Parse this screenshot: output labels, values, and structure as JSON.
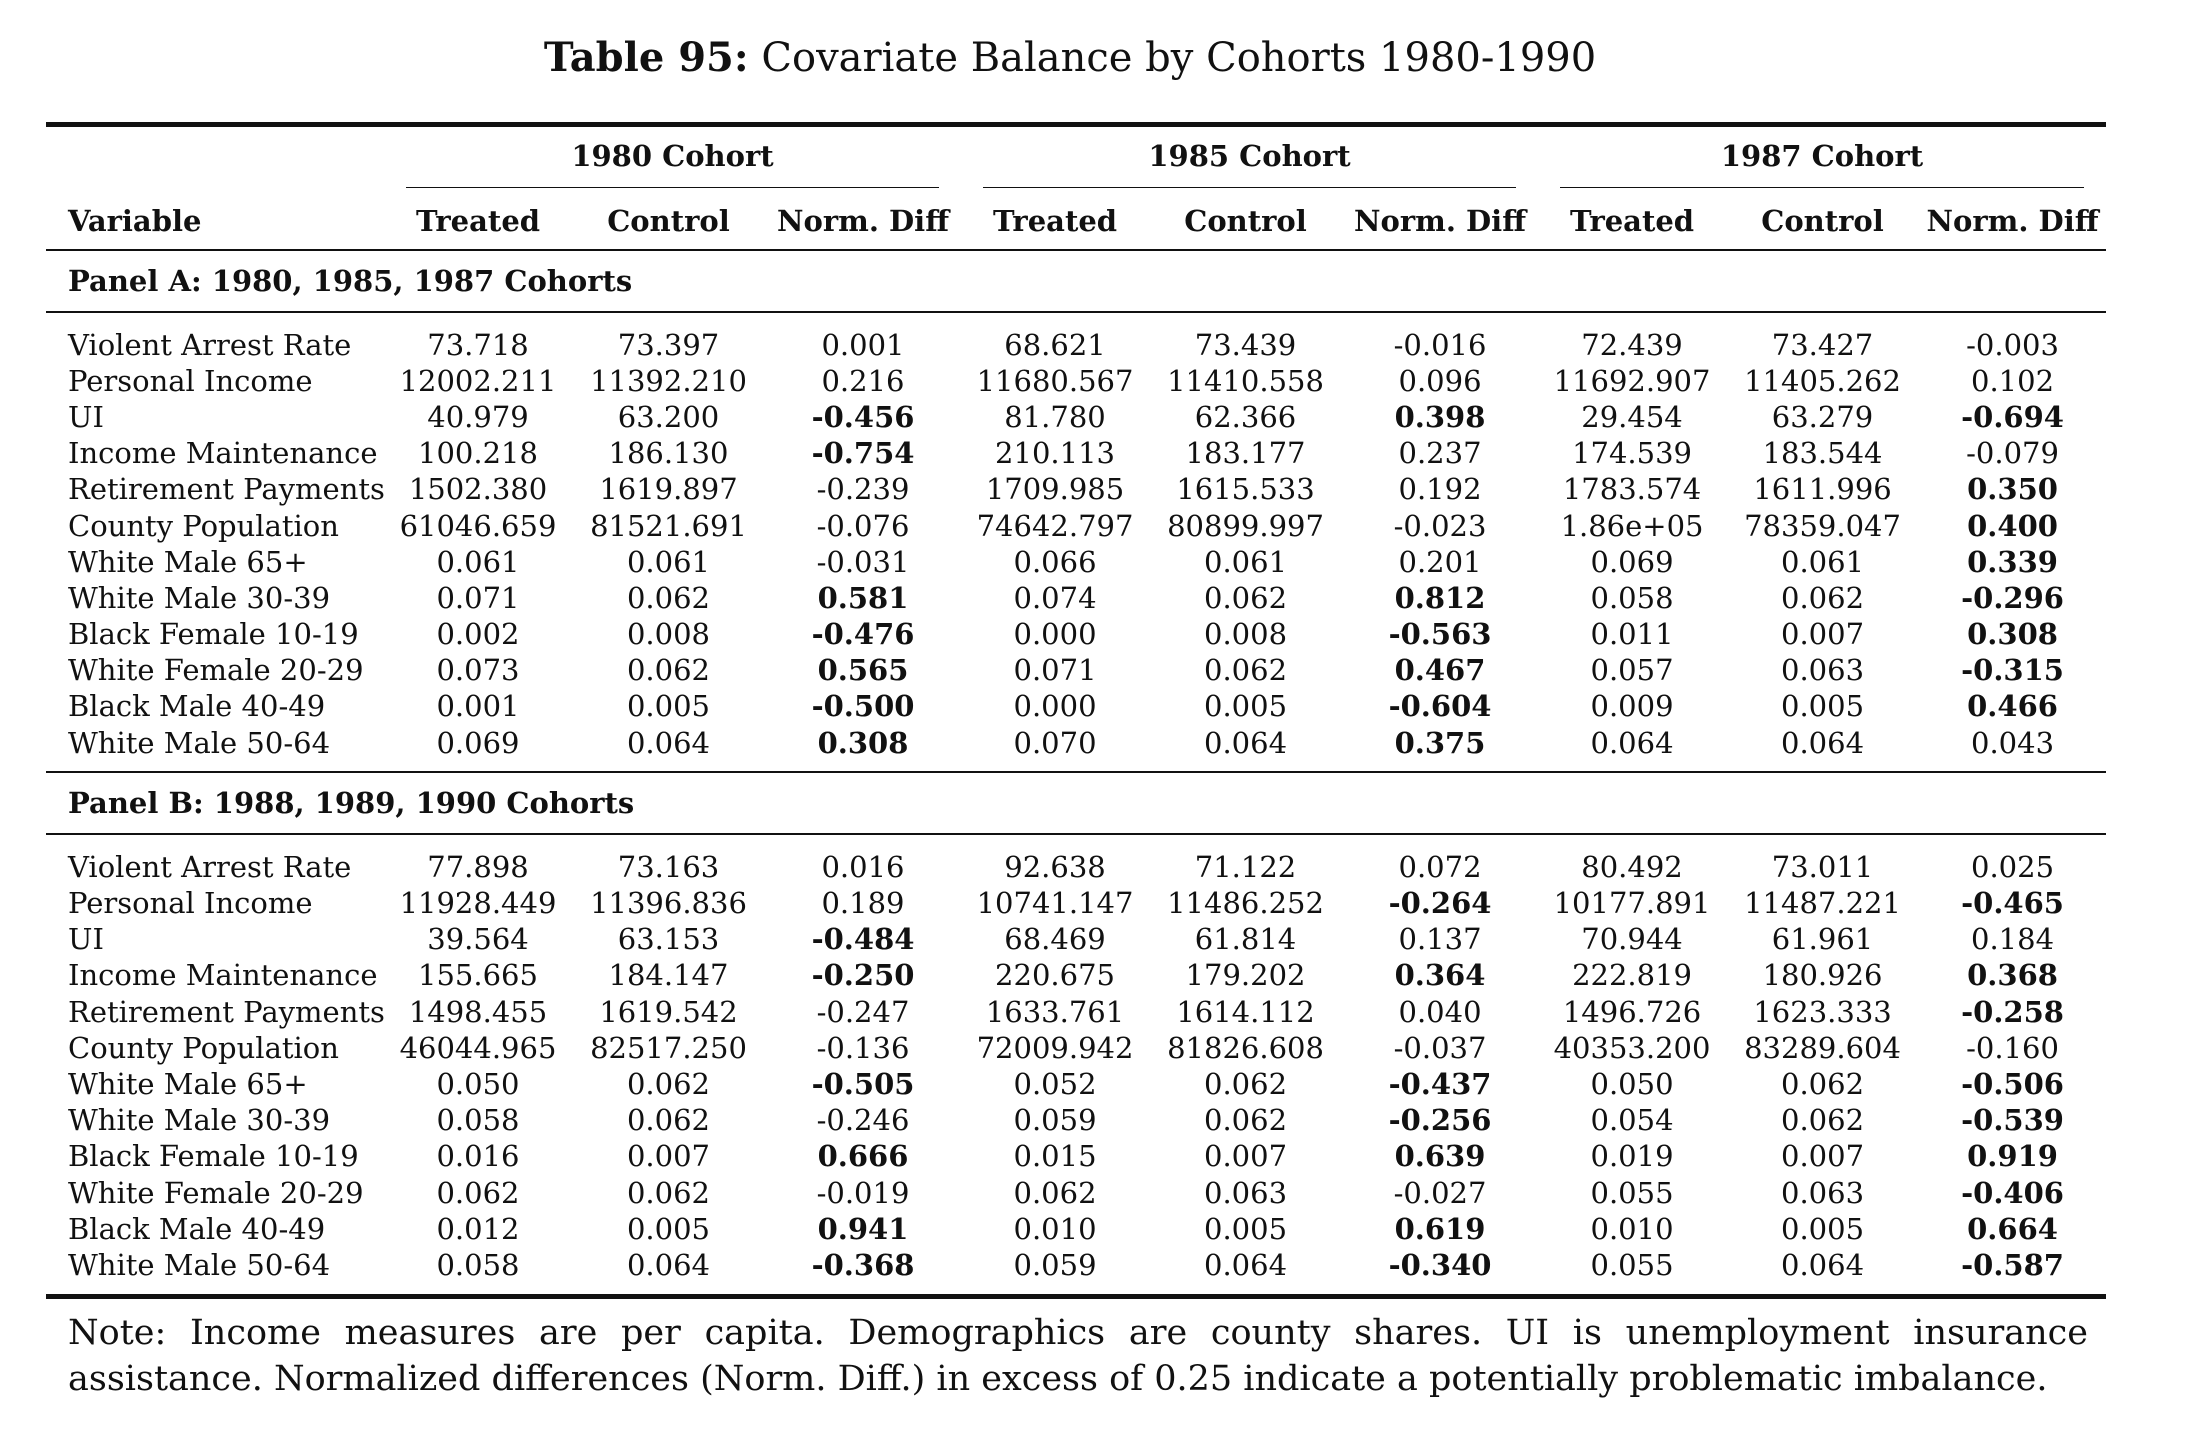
{
  "title_label": "Table 95:",
  "title_text": "Covariate Balance by Cohorts 1980-1990",
  "cohorts": [
    "1980 Cohort",
    "1985 Cohort",
    "1987 Cohort"
  ],
  "columns": [
    "Variable",
    "Treated",
    "Control",
    "Norm. Diff",
    "Treated",
    "Control",
    "Norm. Diff",
    "Treated",
    "Control",
    "Norm. Diff"
  ],
  "panels": [
    {
      "label": "Panel A: 1980, 1985, 1987 Cohorts",
      "rows": [
        {
          "var": "Violent Arrest Rate",
          "cells": [
            "73.718",
            "73.397",
            "0.001",
            "68.621",
            "73.439",
            "-0.016",
            "72.439",
            "73.427",
            "-0.003"
          ],
          "bold": []
        },
        {
          "var": "Personal Income",
          "cells": [
            "12002.211",
            "11392.210",
            "0.216",
            "11680.567",
            "11410.558",
            "0.096",
            "11692.907",
            "11405.262",
            "0.102"
          ],
          "bold": []
        },
        {
          "var": "UI",
          "cells": [
            "40.979",
            "63.200",
            "-0.456",
            "81.780",
            "62.366",
            "0.398",
            "29.454",
            "63.279",
            "-0.694"
          ],
          "bold": [
            2,
            5,
            8
          ]
        },
        {
          "var": "Income Maintenance",
          "cells": [
            "100.218",
            "186.130",
            "-0.754",
            "210.113",
            "183.177",
            "0.237",
            "174.539",
            "183.544",
            "-0.079"
          ],
          "bold": [
            2
          ]
        },
        {
          "var": "Retirement Payments",
          "cells": [
            "1502.380",
            "1619.897",
            "-0.239",
            "1709.985",
            "1615.533",
            "0.192",
            "1783.574",
            "1611.996",
            "0.350"
          ],
          "bold": [
            8
          ]
        },
        {
          "var": "County Population",
          "cells": [
            "61046.659",
            "81521.691",
            "-0.076",
            "74642.797",
            "80899.997",
            "-0.023",
            "1.86e+05",
            "78359.047",
            "0.400"
          ],
          "bold": [
            8
          ]
        },
        {
          "var": "White Male 65+",
          "cells": [
            "0.061",
            "0.061",
            "-0.031",
            "0.066",
            "0.061",
            "0.201",
            "0.069",
            "0.061",
            "0.339"
          ],
          "bold": [
            8
          ]
        },
        {
          "var": "White Male 30-39",
          "cells": [
            "0.071",
            "0.062",
            "0.581",
            "0.074",
            "0.062",
            "0.812",
            "0.058",
            "0.062",
            "-0.296"
          ],
          "bold": [
            2,
            5,
            8
          ]
        },
        {
          "var": "Black Female 10-19",
          "cells": [
            "0.002",
            "0.008",
            "-0.476",
            "0.000",
            "0.008",
            "-0.563",
            "0.011",
            "0.007",
            "0.308"
          ],
          "bold": [
            2,
            5,
            8
          ]
        },
        {
          "var": "White Female 20-29",
          "cells": [
            "0.073",
            "0.062",
            "0.565",
            "0.071",
            "0.062",
            "0.467",
            "0.057",
            "0.063",
            "-0.315"
          ],
          "bold": [
            2,
            5,
            8
          ]
        },
        {
          "var": "Black Male 40-49",
          "cells": [
            "0.001",
            "0.005",
            "-0.500",
            "0.000",
            "0.005",
            "-0.604",
            "0.009",
            "0.005",
            "0.466"
          ],
          "bold": [
            2,
            5,
            8
          ]
        },
        {
          "var": "White Male 50-64",
          "cells": [
            "0.069",
            "0.064",
            "0.308",
            "0.070",
            "0.064",
            "0.375",
            "0.064",
            "0.064",
            "0.043"
          ],
          "bold": [
            2,
            5
          ]
        }
      ]
    },
    {
      "label": "Panel B: 1988, 1989, 1990 Cohorts",
      "rows": [
        {
          "var": "Violent Arrest Rate",
          "cells": [
            "77.898",
            "73.163",
            "0.016",
            "92.638",
            "71.122",
            "0.072",
            "80.492",
            "73.011",
            "0.025"
          ],
          "bold": []
        },
        {
          "var": "Personal Income",
          "cells": [
            "11928.449",
            "11396.836",
            "0.189",
            "10741.147",
            "11486.252",
            "-0.264",
            "10177.891",
            "11487.221",
            "-0.465"
          ],
          "bold": [
            5,
            8
          ]
        },
        {
          "var": "UI",
          "cells": [
            "39.564",
            "63.153",
            "-0.484",
            "68.469",
            "61.814",
            "0.137",
            "70.944",
            "61.961",
            "0.184"
          ],
          "bold": [
            2
          ]
        },
        {
          "var": "Income Maintenance",
          "cells": [
            "155.665",
            "184.147",
            "-0.250",
            "220.675",
            "179.202",
            "0.364",
            "222.819",
            "180.926",
            "0.368"
          ],
          "bold": [
            2,
            5,
            8
          ]
        },
        {
          "var": "Retirement Payments",
          "cells": [
            "1498.455",
            "1619.542",
            "-0.247",
            "1633.761",
            "1614.112",
            "0.040",
            "1496.726",
            "1623.333",
            "-0.258"
          ],
          "bold": [
            8
          ]
        },
        {
          "var": "County Population",
          "cells": [
            "46044.965",
            "82517.250",
            "-0.136",
            "72009.942",
            "81826.608",
            "-0.037",
            "40353.200",
            "83289.604",
            "-0.160"
          ],
          "bold": []
        },
        {
          "var": "White Male 65+",
          "cells": [
            "0.050",
            "0.062",
            "-0.505",
            "0.052",
            "0.062",
            "-0.437",
            "0.050",
            "0.062",
            "-0.506"
          ],
          "bold": [
            2,
            5,
            8
          ]
        },
        {
          "var": "White Male 30-39",
          "cells": [
            "0.058",
            "0.062",
            "-0.246",
            "0.059",
            "0.062",
            "-0.256",
            "0.054",
            "0.062",
            "-0.539"
          ],
          "bold": [
            5,
            8
          ]
        },
        {
          "var": "Black Female 10-19",
          "cells": [
            "0.016",
            "0.007",
            "0.666",
            "0.015",
            "0.007",
            "0.639",
            "0.019",
            "0.007",
            "0.919"
          ],
          "bold": [
            2,
            5,
            8
          ]
        },
        {
          "var": "White Female 20-29",
          "cells": [
            "0.062",
            "0.062",
            "-0.019",
            "0.062",
            "0.063",
            "-0.027",
            "0.055",
            "0.063",
            "-0.406"
          ],
          "bold": [
            8
          ]
        },
        {
          "var": "Black Male 40-49",
          "cells": [
            "0.012",
            "0.005",
            "0.941",
            "0.010",
            "0.005",
            "0.619",
            "0.010",
            "0.005",
            "0.664"
          ],
          "bold": [
            2,
            5,
            8
          ]
        },
        {
          "var": "White Male 50-64",
          "cells": [
            "0.058",
            "0.064",
            "-0.368",
            "0.059",
            "0.064",
            "-0.340",
            "0.055",
            "0.064",
            "-0.587"
          ],
          "bold": [
            2,
            5,
            8
          ]
        }
      ]
    }
  ],
  "note": "Note: Income measures are per capita. Demographics are county shares. UI is unemployment insurance assistance. Normalized differences (Norm. Diff.) in excess of 0.25 indicate a potentially problematic imbalance."
}
